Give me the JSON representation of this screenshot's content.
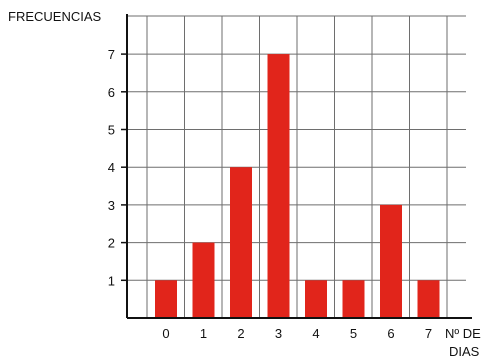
{
  "chart_data": {
    "type": "bar",
    "categories": [
      "0",
      "1",
      "2",
      "3",
      "4",
      "5",
      "6",
      "7"
    ],
    "values": [
      1,
      2,
      4,
      7,
      1,
      1,
      3,
      1
    ],
    "ylabel": "FRECUENCIAS",
    "xlabel_line1": "Nº DE",
    "xlabel_line2": "DIAS",
    "yticks": [
      "1",
      "2",
      "3",
      "4",
      "5",
      "6",
      "7"
    ],
    "ylim": [
      0,
      8
    ],
    "grid": true,
    "bar_color": "#e1251b",
    "axis_color": "#111111",
    "grid_color": "#6e6e6e"
  }
}
